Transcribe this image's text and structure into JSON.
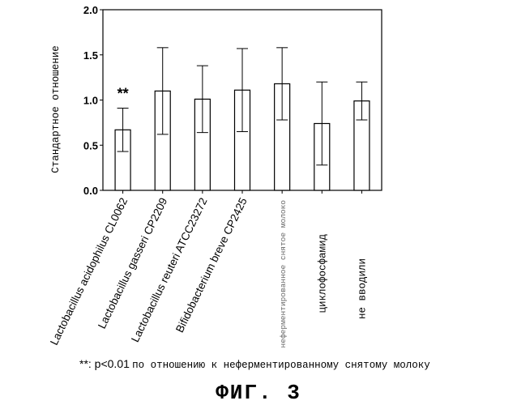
{
  "chart_data": {
    "type": "bar",
    "ylabel": "Стандартное отношение",
    "ylim": [
      0,
      2.0
    ],
    "yticks": [
      "0.0",
      "0.5",
      "1.0",
      "1.5",
      "2.0"
    ],
    "categories": [
      "Lactobacillus acidophilus CL0062",
      "Lactobacillus gasseri CP2209",
      "Lactobacillus reuteri ATCC23272",
      "Bifidobacterium breve CP2425",
      "неферментированное снятое молоко",
      "циклофосфамид",
      "не вводили"
    ],
    "values": [
      0.67,
      1.1,
      1.01,
      1.11,
      1.18,
      0.74,
      0.99
    ],
    "errors": [
      0.24,
      0.48,
      0.37,
      0.46,
      0.4,
      0.46,
      0.21
    ],
    "annotations": [
      {
        "category_index": 0,
        "text": "**"
      }
    ],
    "grid": false,
    "legend": "none"
  },
  "footnote": {
    "marker": "**",
    "sig_text": "**: p<0.01",
    "note_text": "по отношению к неферментированному снятому молоку"
  },
  "figure_caption": "ФИГ. 3"
}
